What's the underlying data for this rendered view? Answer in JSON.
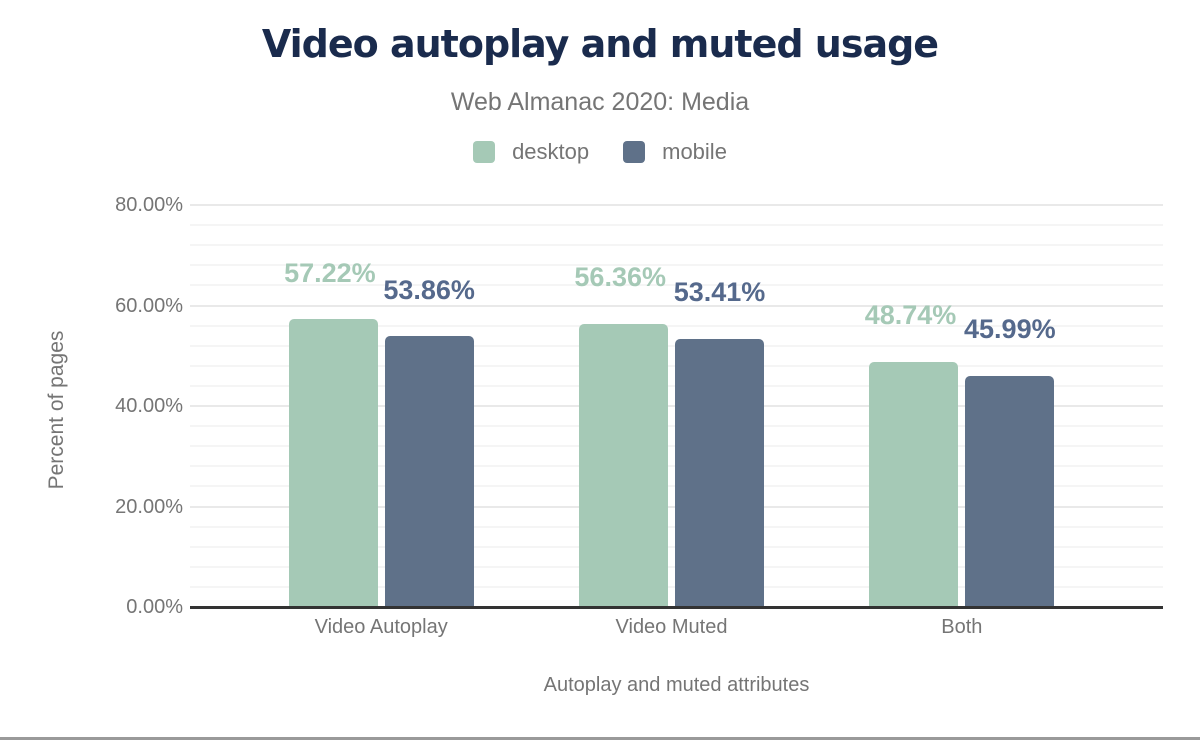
{
  "chart_data": {
    "type": "bar",
    "title": "Video autoplay and muted usage",
    "subtitle": "Web Almanac 2020: Media",
    "xlabel": "Autoplay and muted attributes",
    "ylabel": "Percent of pages",
    "categories": [
      "Video Autoplay",
      "Video Muted",
      "Both"
    ],
    "series": [
      {
        "name": "desktop",
        "color": "#a5c9b6",
        "label_color": "#a5c9b6",
        "values": [
          57.22,
          56.36,
          48.74
        ],
        "labels": [
          "57.22%",
          "56.36%",
          "48.74%"
        ]
      },
      {
        "name": "mobile",
        "color": "#5f7189",
        "label_color": "#55698c",
        "values": [
          53.86,
          53.41,
          45.99
        ],
        "labels": [
          "53.86%",
          "53.41%",
          "45.99%"
        ]
      }
    ],
    "ylim": [
      0,
      80
    ],
    "y_ticks": [
      {
        "value": 0,
        "label": "0.00%"
      },
      {
        "value": 20,
        "label": "20.00%"
      },
      {
        "value": 40,
        "label": "40.00%"
      },
      {
        "value": 60,
        "label": "60.00%"
      },
      {
        "value": 80,
        "label": "80.00%"
      }
    ],
    "grid": {
      "minor_step": 4,
      "major_step": 20,
      "visible": true
    },
    "legend_position": "top"
  },
  "colors": {
    "background": "#ffffff",
    "title": "#1a2b4d",
    "text_muted": "#757575",
    "axis_line": "#333333",
    "grid_minor": "#f5f5f5",
    "grid_major": "#e9e9e9",
    "footer_line": "#9a9a9a"
  }
}
